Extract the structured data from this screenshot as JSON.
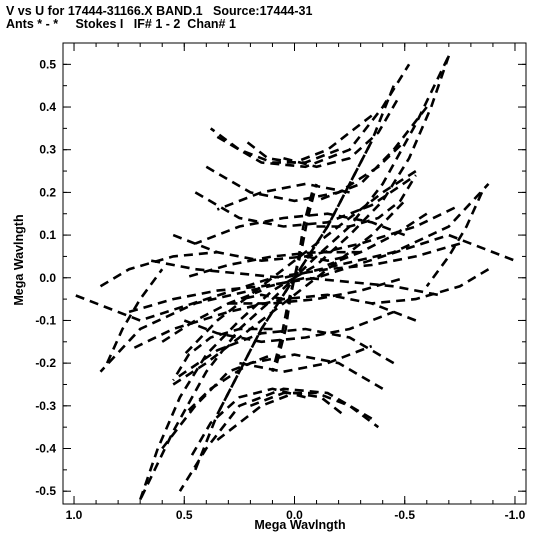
{
  "header": {
    "line1": "V vs U for 17444-31166.X BAND.1   Source:17444-31",
    "line2": "Ants * - *     Stokes I   IF# 1 - 2  Chan# 1"
  },
  "chart_data": {
    "type": "scatter",
    "title": "V vs U for 17444-31166.X BAND.1   Source:17444-31",
    "subtitle": "Ants * - *     Stokes I   IF# 1 - 2  Chan# 1",
    "xlabel": "Mega Wavlngth",
    "ylabel": "Mega Wavlngth",
    "xlim": [
      1.05,
      -1.05
    ],
    "ylim": [
      -0.53,
      0.55
    ],
    "x_inverted": true,
    "xticks": [
      1.0,
      0.5,
      0.0,
      -0.5,
      -1.0
    ],
    "xtick_labels": [
      "1.0",
      "0.5",
      "0.0",
      "-0.5",
      "-1.0"
    ],
    "yticks": [
      0.5,
      0.4,
      0.3,
      0.2,
      0.1,
      0.0,
      -0.1,
      -0.2,
      -0.3,
      -0.4,
      -0.5
    ],
    "ytick_labels": [
      "0.5",
      "0.4",
      "0.3",
      "0.2",
      "0.1",
      "0.0",
      "-0.1",
      "-0.2",
      "-0.3",
      "-0.4",
      "-0.5"
    ],
    "grid": false,
    "legend": "none",
    "color": "#000000",
    "note_uv_tracks": "Each track is drawn as a dashed arc; points are mirrored (u,v) and (-u,-v).",
    "tracks": [
      [
        [
          -0.05,
          0.05
        ],
        [
          -0.15,
          0.04
        ],
        [
          -0.24,
          0.05
        ]
      ],
      [
        [
          -0.1,
          0.12
        ],
        [
          -0.25,
          0.12
        ],
        [
          -0.38,
          0.14
        ],
        [
          -0.48,
          0.18
        ],
        [
          -0.55,
          0.24
        ]
      ],
      [
        [
          0.05,
          0.28
        ],
        [
          -0.1,
          0.26
        ],
        [
          -0.25,
          0.28
        ],
        [
          -0.38,
          0.34
        ],
        [
          -0.47,
          0.42
        ]
      ],
      [
        [
          0.35,
          0.33
        ],
        [
          0.15,
          0.27
        ],
        [
          -0.05,
          0.26
        ],
        [
          -0.25,
          0.3
        ],
        [
          -0.4,
          0.4
        ],
        [
          -0.52,
          0.5
        ]
      ],
      [
        [
          0.4,
          0.26
        ],
        [
          0.2,
          0.2
        ],
        [
          0.0,
          0.18
        ],
        [
          -0.2,
          0.2
        ],
        [
          -0.38,
          0.26
        ],
        [
          -0.5,
          0.32
        ]
      ],
      [
        [
          0.45,
          0.2
        ],
        [
          0.25,
          0.14
        ],
        [
          0.05,
          0.12
        ],
        [
          -0.15,
          0.13
        ],
        [
          -0.35,
          0.17
        ],
        [
          -0.55,
          0.24
        ]
      ],
      [
        [
          0.55,
          0.1
        ],
        [
          0.35,
          0.06
        ],
        [
          0.15,
          0.04
        ],
        [
          -0.05,
          0.05
        ],
        [
          -0.3,
          0.08
        ],
        [
          -0.55,
          0.12
        ],
        [
          -0.75,
          0.17
        ]
      ],
      [
        [
          0.88,
          -0.02
        ],
        [
          0.75,
          0.02
        ],
        [
          0.55,
          0.05
        ],
        [
          0.35,
          0.06
        ]
      ],
      [
        [
          0.75,
          -0.08
        ],
        [
          0.55,
          -0.05
        ],
        [
          0.35,
          -0.03
        ],
        [
          0.15,
          -0.02
        ],
        [
          -0.1,
          0.0
        ],
        [
          -0.4,
          0.05
        ],
        [
          -0.7,
          0.1
        ],
        [
          -1.0,
          0.04
        ]
      ],
      [
        [
          0.65,
          0.04
        ],
        [
          0.45,
          0.02
        ],
        [
          0.25,
          0.01
        ],
        [
          0.05,
          0.0
        ],
        [
          -0.2,
          0.03
        ],
        [
          -0.45,
          0.06
        ],
        [
          -0.7,
          0.12
        ],
        [
          -0.88,
          0.22
        ]
      ],
      [
        [
          0.5,
          -0.1
        ],
        [
          0.35,
          -0.13
        ],
        [
          0.15,
          -0.15
        ],
        [
          -0.05,
          -0.14
        ],
        [
          -0.25,
          -0.12
        ],
        [
          -0.45,
          -0.08
        ]
      ],
      [
        [
          0.3,
          -0.06
        ],
        [
          0.1,
          -0.06
        ],
        [
          -0.1,
          -0.05
        ],
        [
          -0.3,
          -0.03
        ],
        [
          -0.5,
          0.0
        ]
      ],
      [
        [
          0.25,
          -0.2
        ],
        [
          0.05,
          -0.22
        ],
        [
          -0.15,
          -0.2
        ],
        [
          -0.35,
          -0.16
        ]
      ],
      [
        [
          0.2,
          -0.3
        ],
        [
          0.05,
          -0.27
        ],
        [
          -0.1,
          -0.27
        ],
        [
          -0.25,
          -0.3
        ],
        [
          -0.38,
          -0.35
        ]
      ],
      [
        [
          0.6,
          -0.4
        ],
        [
          0.45,
          -0.3
        ],
        [
          0.3,
          -0.22
        ],
        [
          0.1,
          -0.18
        ]
      ],
      [
        [
          0.7,
          -0.52
        ],
        [
          0.62,
          -0.4
        ],
        [
          0.52,
          -0.28
        ],
        [
          0.4,
          -0.18
        ],
        [
          0.25,
          -0.1
        ],
        [
          0.1,
          -0.03
        ],
        [
          0.0,
          0.0
        ],
        [
          -0.1,
          0.05
        ],
        [
          -0.25,
          0.12
        ],
        [
          -0.4,
          0.22
        ],
        [
          -0.55,
          0.36
        ],
        [
          -0.7,
          0.52
        ]
      ],
      [
        [
          0.55,
          -0.25
        ],
        [
          0.4,
          -0.2
        ],
        [
          0.25,
          -0.14
        ],
        [
          0.1,
          -0.08
        ],
        [
          -0.05,
          -0.02
        ],
        [
          -0.2,
          0.04
        ],
        [
          -0.35,
          0.1
        ],
        [
          -0.5,
          0.18
        ]
      ],
      [
        [
          0.08,
          -0.2
        ],
        [
          0.04,
          -0.12
        ],
        [
          0.02,
          -0.05
        ],
        [
          0.0,
          0.0
        ],
        [
          -0.03,
          0.06
        ],
        [
          -0.06,
          0.14
        ],
        [
          -0.1,
          0.22
        ]
      ],
      [
        [
          0.45,
          -0.45
        ],
        [
          0.35,
          -0.32
        ],
        [
          0.25,
          -0.22
        ],
        [
          0.15,
          -0.12
        ],
        [
          0.05,
          -0.04
        ],
        [
          -0.05,
          0.04
        ],
        [
          -0.15,
          0.12
        ],
        [
          -0.25,
          0.22
        ],
        [
          -0.35,
          0.32
        ]
      ],
      [
        [
          0.85,
          -0.2
        ],
        [
          0.78,
          -0.12
        ],
        [
          0.7,
          -0.05
        ],
        [
          0.6,
          0.02
        ]
      ],
      [
        [
          0.6,
          -0.15
        ],
        [
          0.45,
          -0.1
        ],
        [
          0.3,
          -0.06
        ],
        [
          0.15,
          -0.03
        ]
      ],
      [
        [
          0.35,
          -0.38
        ],
        [
          0.25,
          -0.34
        ],
        [
          0.15,
          -0.3
        ],
        [
          0.0,
          -0.27
        ],
        [
          -0.12,
          -0.28
        ],
        [
          -0.22,
          -0.32
        ]
      ]
    ]
  }
}
